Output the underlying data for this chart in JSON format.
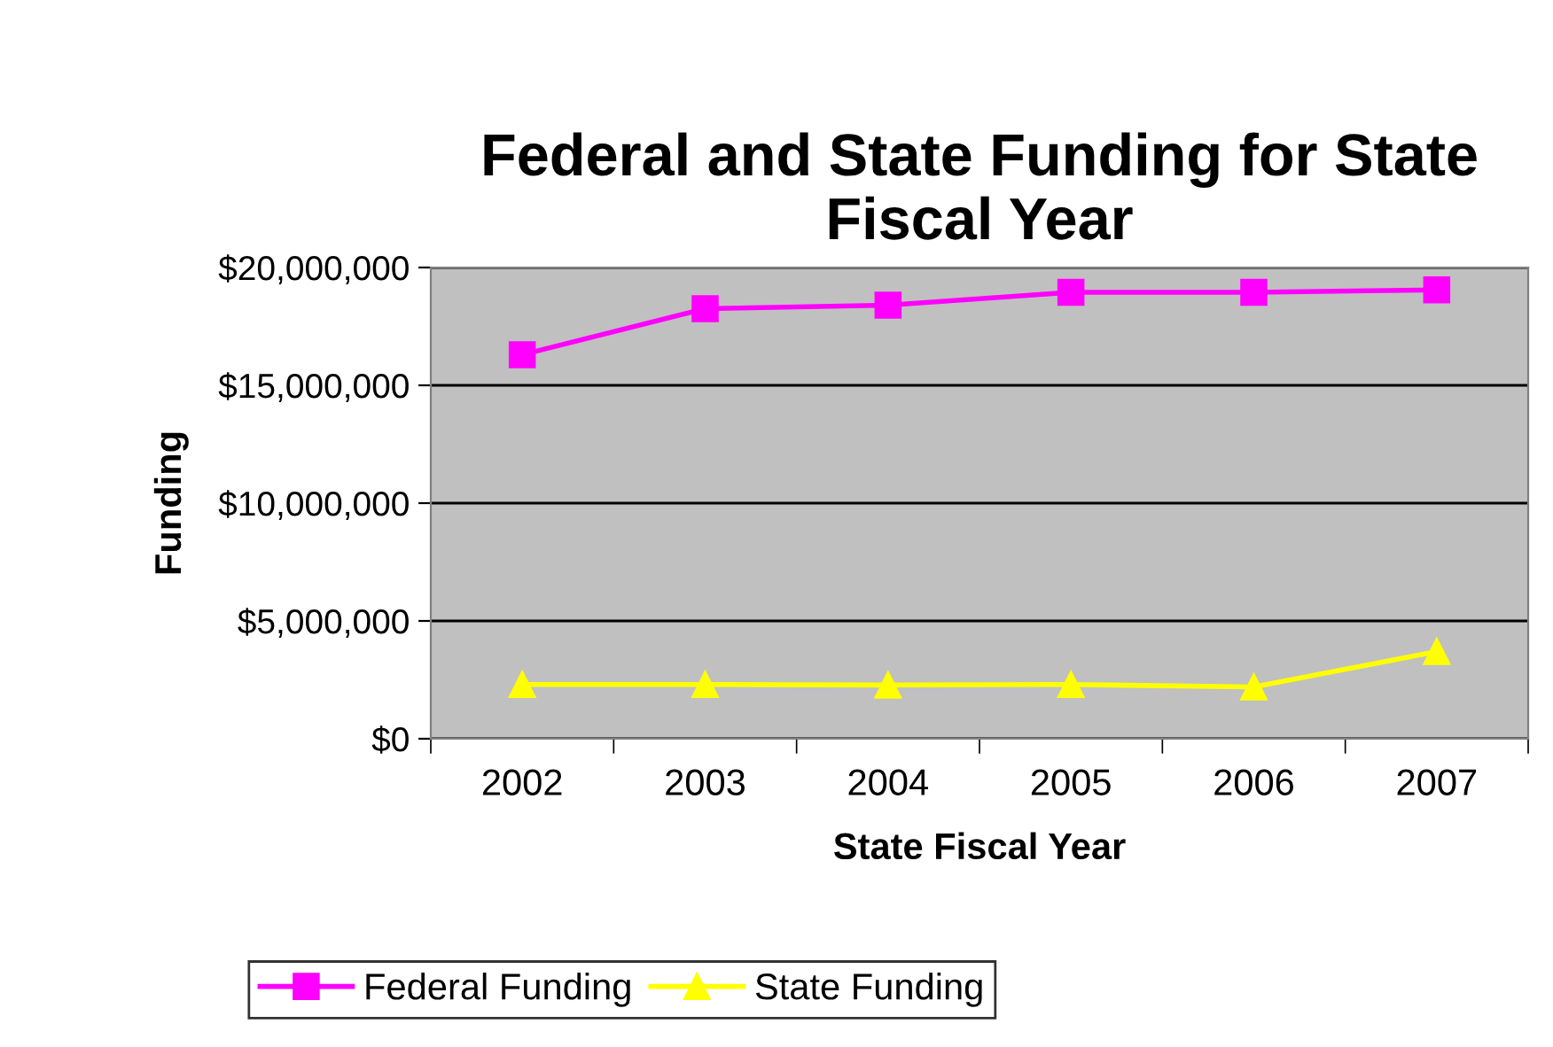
{
  "chart_data": {
    "type": "line",
    "title": "Federal and State Funding for State Fiscal Year",
    "xlabel": "State Fiscal Year",
    "ylabel": "Funding",
    "categories": [
      "2002",
      "2003",
      "2004",
      "2005",
      "2006",
      "2007"
    ],
    "series": [
      {
        "name": "Federal Funding",
        "color": "#ff00ff",
        "marker": "square",
        "values": [
          16300000,
          18250000,
          18400000,
          18950000,
          18950000,
          19050000
        ]
      },
      {
        "name": "State Funding",
        "color": "#ffff00",
        "marker": "triangle",
        "values": [
          2300000,
          2300000,
          2280000,
          2300000,
          2200000,
          3700000
        ]
      }
    ],
    "ylim": [
      0,
      20000000
    ],
    "yticks": [
      {
        "value": 0,
        "label": "$0"
      },
      {
        "value": 5000000,
        "label": "$5,000,000"
      },
      {
        "value": 10000000,
        "label": "$10,000,000"
      },
      {
        "value": 15000000,
        "label": "$15,000,000"
      },
      {
        "value": 20000000,
        "label": "$20,000,000"
      }
    ],
    "grid": "y",
    "legend": "bottom",
    "line_style": "solid"
  }
}
